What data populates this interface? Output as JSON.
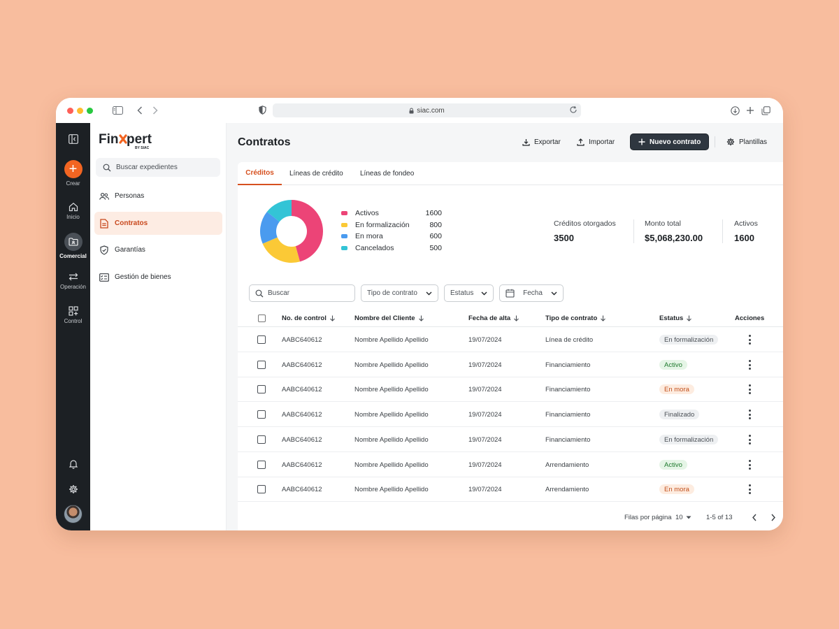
{
  "browser": {
    "url": "siac.com"
  },
  "brand": {
    "logo_text": "Finxpert",
    "logo_sub": "BY SIAC",
    "accent": "#f26522"
  },
  "rail": {
    "create_label": "Crear",
    "items": [
      {
        "label": "Inicio",
        "icon": "home-icon"
      },
      {
        "label": "Comercial",
        "icon": "folder-icon",
        "active": true
      },
      {
        "label": "Operación",
        "icon": "swap-arrows-icon"
      },
      {
        "label": "Control",
        "icon": "grid-plus-icon"
      }
    ]
  },
  "leftnav": {
    "search_placeholder": "Buscar expedientes",
    "items": [
      {
        "label": "Personas",
        "icon": "people-icon"
      },
      {
        "label": "Contratos",
        "icon": "document-icon",
        "active": true
      },
      {
        "label": "Garantías",
        "icon": "shield-check-icon"
      },
      {
        "label": "Gestión de bienes",
        "icon": "checklist-icon"
      }
    ]
  },
  "header": {
    "title": "Contratos",
    "export_label": "Exportar",
    "import_label": "Importar",
    "new_contract_label": "Nuevo contrato",
    "templates_label": "Plantillas"
  },
  "tabs": [
    {
      "label": "Créditos",
      "active": true
    },
    {
      "label": "Líneas de crédito"
    },
    {
      "label": "Líneas de fondeo"
    }
  ],
  "chart_data": {
    "type": "pie",
    "donut": true,
    "categories": [
      "Activos",
      "En formalización",
      "En mora",
      "Cancelados"
    ],
    "values": [
      1600,
      800,
      600,
      500
    ],
    "colors": [
      "#ec4477",
      "#fbc936",
      "#4a9bef",
      "#33c4d6"
    ]
  },
  "stats": [
    {
      "label": "Créditos otorgados",
      "value": "3500"
    },
    {
      "label": "Monto total",
      "value": "$5,068,230.00"
    },
    {
      "label": "Activos",
      "value": "1600"
    }
  ],
  "filters": {
    "search_placeholder": "Buscar",
    "contract_type": "Tipo de contrato",
    "status": "Estatus",
    "date": "Fecha"
  },
  "table": {
    "columns": [
      "No. de control",
      "Nombre del Cliente",
      "Fecha de alta",
      "Tipo de contrato",
      "Estatus",
      "Acciones"
    ],
    "rows": [
      {
        "control": "AABC640612",
        "client": "Nombre Apellido Apellido",
        "date": "19/07/2024",
        "type": "Línea de crédito",
        "status": "En formalización",
        "status_kind": "gray"
      },
      {
        "control": "AABC640612",
        "client": "Nombre Apellido Apellido",
        "date": "19/07/2024",
        "type": "Financiamiento",
        "status": "Activo",
        "status_kind": "green"
      },
      {
        "control": "AABC640612",
        "client": "Nombre Apellido Apellido",
        "date": "19/07/2024",
        "type": "Financiamiento",
        "status": "En mora",
        "status_kind": "orange"
      },
      {
        "control": "AABC640612",
        "client": "Nombre Apellido Apellido",
        "date": "19/07/2024",
        "type": "Financiamiento",
        "status": "Finalizado",
        "status_kind": "gray"
      },
      {
        "control": "AABC640612",
        "client": "Nombre Apellido Apellido",
        "date": "19/07/2024",
        "type": "Financiamiento",
        "status": "En formalización",
        "status_kind": "gray"
      },
      {
        "control": "AABC640612",
        "client": "Nombre Apellido Apellido",
        "date": "19/07/2024",
        "type": "Arrendamiento",
        "status": "Activo",
        "status_kind": "green"
      },
      {
        "control": "AABC640612",
        "client": "Nombre Apellido Apellido",
        "date": "19/07/2024",
        "type": "Arrendamiento",
        "status": "En mora",
        "status_kind": "orange"
      }
    ]
  },
  "pagination": {
    "rows_per_page_label": "Filas por página",
    "rows_per_page": "10",
    "range": "1-5 of 13"
  }
}
